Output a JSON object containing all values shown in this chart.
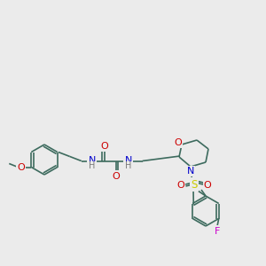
{
  "background_color": "#ebebeb",
  "bond_color": "#3d6b5e",
  "bond_width": 1.2,
  "atom_colors": {
    "O": "#cc0000",
    "N": "#0000cc",
    "S": "#cccc00",
    "F": "#cc00cc",
    "H": "#7a7a7a",
    "C": "#3d6b5e"
  },
  "font_size": 7.5
}
